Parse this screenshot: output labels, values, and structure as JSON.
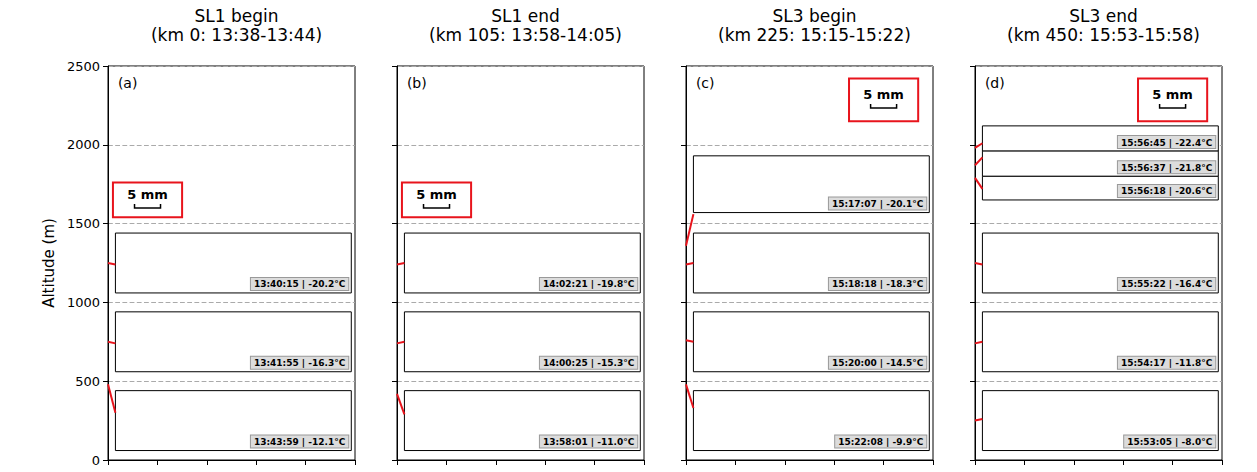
{
  "chart_data": [
    {
      "type": "image_strips",
      "title": "SL1 begin",
      "subtitle": "(km 0: 13:38-13:44)",
      "panel": "(a)",
      "ylabel": "Altitude (m)",
      "ylim": [
        0,
        2500
      ],
      "yticks": [
        0,
        500,
        1000,
        1500,
        2000,
        2500
      ],
      "grid": true,
      "tick_labels": "y",
      "scale_bar": "5 mm",
      "color": "#e8141c",
      "strips": [
        {
          "label": "13:40:15 | -20.2°C",
          "altitude": [
            1250,
            1240
          ]
        },
        {
          "label": "13:41:55 | -16.3°C",
          "altitude": [
            750,
            740
          ]
        },
        {
          "label": "13:43:59 | -12.1°C",
          "altitude": [
            480,
            300
          ]
        }
      ]
    },
    {
      "type": "image_strips",
      "title": "SL1 end",
      "subtitle": "(km 105: 13:58-14:05)",
      "panel": "(b)",
      "ylim": [
        0,
        2500
      ],
      "yticks": [
        0,
        500,
        1000,
        1500,
        2000,
        2500
      ],
      "grid": true,
      "tick_labels": false,
      "scale_bar": "5 mm",
      "color": "#e8141c",
      "strips": [
        {
          "label": "14:02:21 | -19.8°C",
          "altitude": [
            1240,
            1250
          ]
        },
        {
          "label": "14:00:25 | -15.3°C",
          "altitude": [
            740,
            750
          ]
        },
        {
          "label": "13:58:01 | -11.0°C",
          "altitude": [
            420,
            290
          ]
        }
      ]
    },
    {
      "type": "image_strips",
      "title": "SL3 begin",
      "subtitle": "(km 225: 15:15-15:22)",
      "panel": "(c)",
      "ylim": [
        0,
        2500
      ],
      "yticks": [
        0,
        500,
        1000,
        1500,
        2000,
        2500
      ],
      "grid": true,
      "tick_labels": false,
      "scale_bar": "5 mm",
      "color": "#e8141c",
      "strips": [
        {
          "label": "15:17:07 | -20.1°C",
          "altitude": [
            1360,
            1560
          ]
        },
        {
          "label": "15:18:18 | -18.3°C",
          "altitude": [
            1240,
            1250
          ]
        },
        {
          "label": "15:20:00 | -14.5°C",
          "altitude": [
            760,
            750
          ]
        },
        {
          "label": "15:22:08 | -9.9°C",
          "altitude": [
            480,
            330
          ]
        }
      ]
    },
    {
      "type": "image_strips",
      "title": "SL3 end",
      "subtitle": "(km 450: 15:53-15:58)",
      "panel": "(d)",
      "ylim": [
        0,
        2500
      ],
      "yticks": [
        0,
        500,
        1000,
        1500,
        2000,
        2500
      ],
      "grid": true,
      "tick_labels": false,
      "scale_bar": "5 mm",
      "color": "#e8141c",
      "strips": [
        {
          "label": "15:56:45 | -22.4°C",
          "altitude": [
            1980,
            2010
          ]
        },
        {
          "label": "15:56:37 | -21.8°C",
          "altitude": [
            1870,
            1920
          ]
        },
        {
          "label": "15:56:18 | -20.6°C",
          "altitude": [
            1790,
            1720
          ]
        },
        {
          "label": "15:55:22 | -16.4°C",
          "altitude": [
            1250,
            1240
          ]
        },
        {
          "label": "15:54:17 | -11.8°C",
          "altitude": [
            740,
            750
          ]
        },
        {
          "label": "15:53:05 | -8.0°C",
          "altitude": [
            250,
            260
          ]
        }
      ]
    }
  ]
}
